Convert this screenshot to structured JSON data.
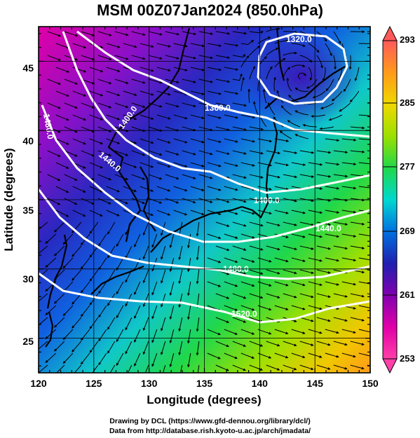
{
  "title": "MSM 00Z07Jan2024 (850.0hPa)",
  "map": {
    "xlabel": "Longitude (degrees)",
    "ylabel": "Latitude  (degrees)",
    "xlim": [
      120,
      150
    ],
    "ylim": [
      22.5,
      47.5
    ],
    "x_ticks": [
      "120",
      "125",
      "130",
      "135",
      "140",
      "145",
      "150"
    ],
    "y_ticks": [
      "25",
      "30",
      "35",
      "40",
      "45"
    ],
    "grid": true
  },
  "colorbar": {
    "min": 253,
    "max": 293,
    "labels": [
      "293",
      "285",
      "277",
      "269",
      "261",
      "253"
    ],
    "colors": [
      "#ff5a5a",
      "#ff9a1a",
      "#f0d800",
      "#9be000",
      "#20d84a",
      "#00d8d0",
      "#0070e0",
      "#2020b0",
      "#8000b0",
      "#e000a8",
      "#ff40a8"
    ]
  },
  "contours": {
    "labels": [
      "1320.0",
      "1360.0",
      "1400.0",
      "1440.0",
      "1480.0",
      "1400.0",
      "1440.0",
      "1480.0",
      "1520.0"
    ]
  },
  "credits": {
    "line1": "Drawing by DCL (https://www.gfd-dennou.org/library/dcl/)",
    "line2": "Data from http://database.rish.kyoto-u.ac.jp/arch/jmadata/"
  }
}
